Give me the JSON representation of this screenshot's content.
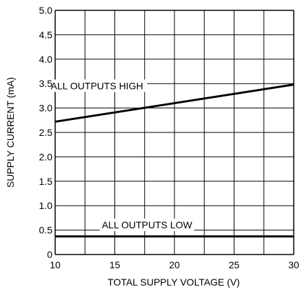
{
  "chart_data": {
    "type": "line",
    "title": "",
    "xlabel": "TOTAL SUPPLY VOLTAGE (V)",
    "ylabel": "SUPPLY CURRENT (mA)",
    "xlim": [
      10,
      30
    ],
    "ylim": [
      0,
      5.0
    ],
    "x_ticks": [
      10,
      15,
      20,
      25,
      30
    ],
    "x_tick_labels": [
      "10",
      "15",
      "20",
      "25",
      "30"
    ],
    "x_grid_step": 2.5,
    "y_ticks": [
      0,
      0.5,
      1.0,
      1.5,
      2.0,
      2.5,
      3.0,
      3.5,
      4.0,
      4.5,
      5.0
    ],
    "y_tick_labels": [
      "0",
      "0.5",
      "1.0",
      "1.5",
      "2.0",
      "2.5",
      "3.0",
      "3.5",
      "4.0",
      "4.5",
      "5.0"
    ],
    "grid": true,
    "series": [
      {
        "name": "ALL OUTPUTS HIGH",
        "x": [
          10,
          30
        ],
        "y": [
          2.72,
          3.48
        ],
        "label_at": [
          13.5,
          3.4
        ]
      },
      {
        "name": "ALL OUTPUTS LOW",
        "x": [
          10,
          30
        ],
        "y": [
          0.37,
          0.37
        ],
        "label_at": [
          17.7,
          0.55
        ]
      }
    ]
  }
}
